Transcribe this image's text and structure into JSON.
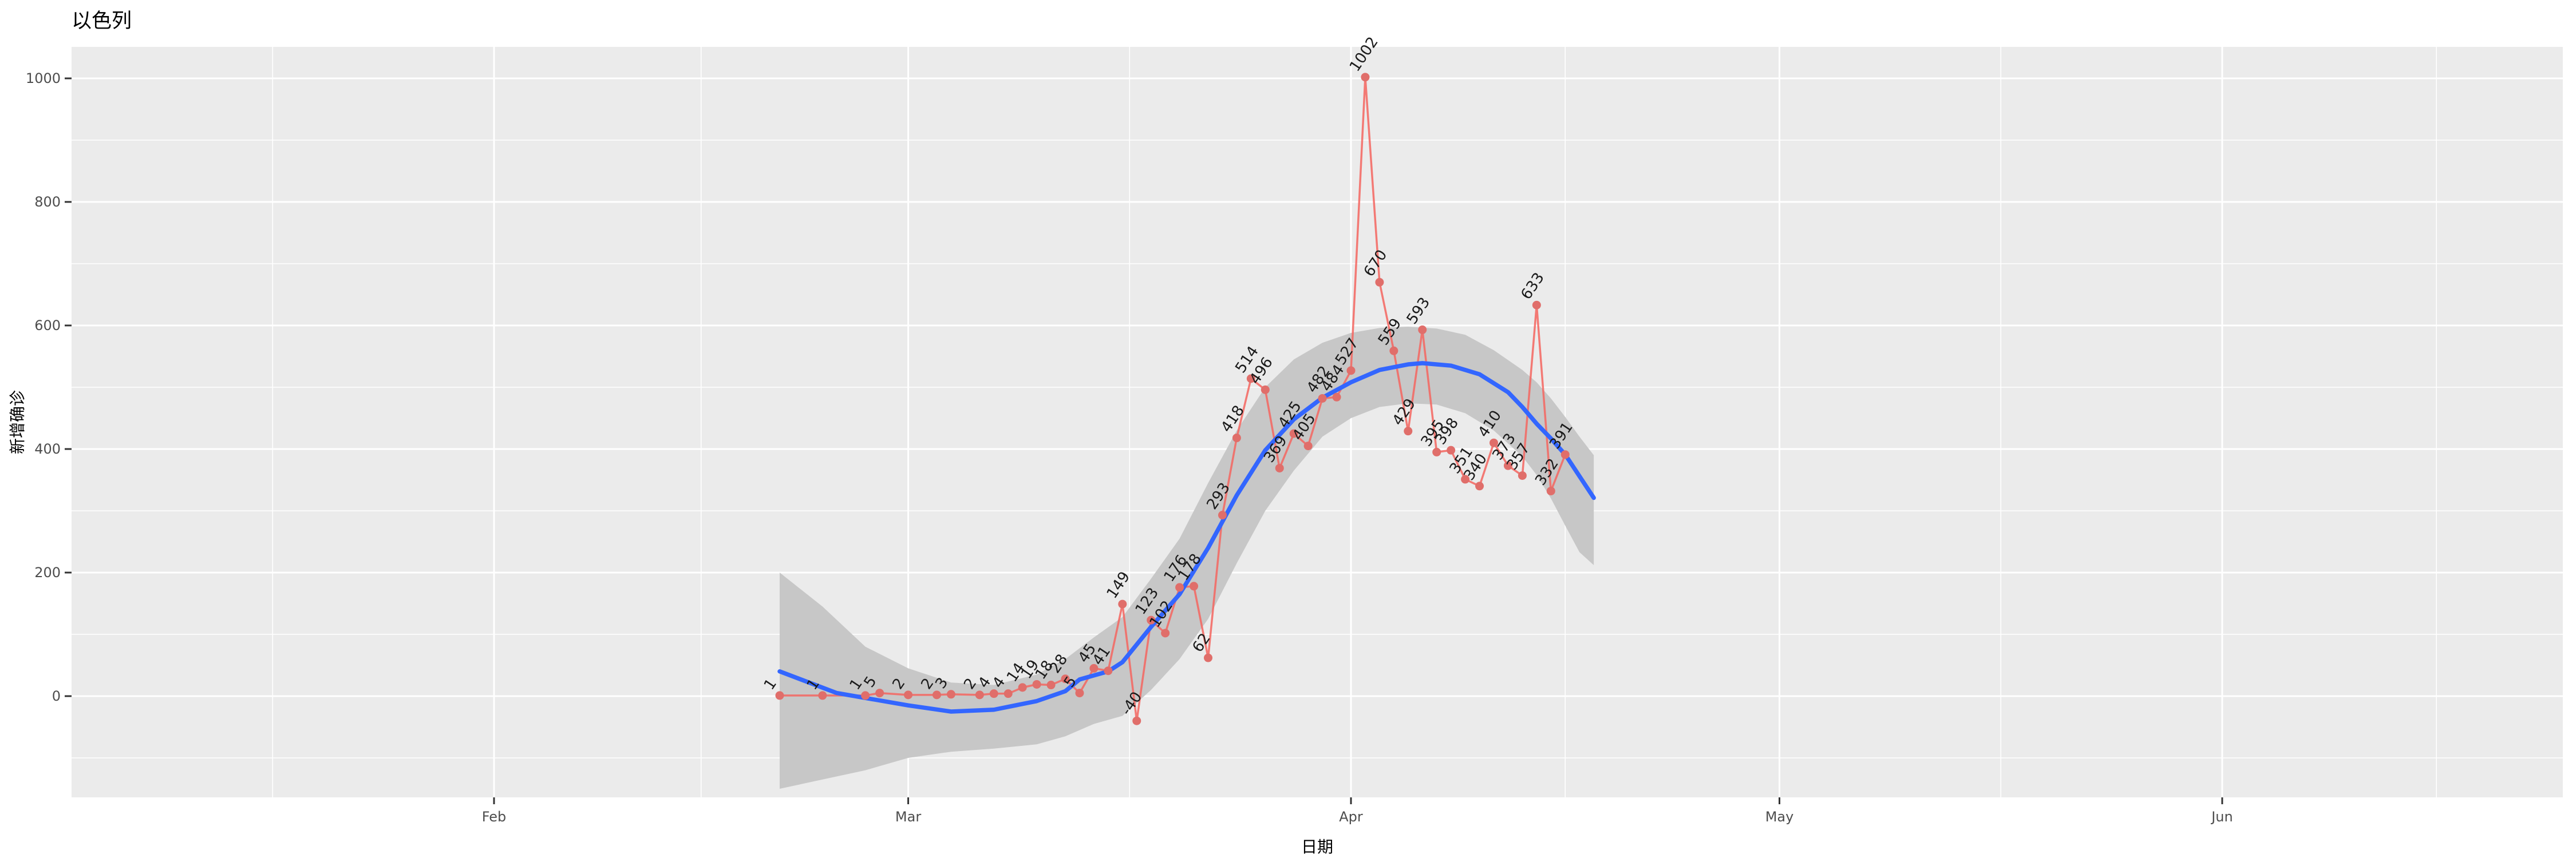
{
  "chart_data": {
    "type": "line",
    "title": "以色列",
    "xlabel": "日期",
    "ylabel": "新增确诊",
    "legend": "none",
    "grid": "on",
    "x_axis": {
      "ticks": [
        {
          "label": "Feb",
          "date": "2020-02-01"
        },
        {
          "label": "Mar",
          "date": "2020-03-01"
        },
        {
          "label": "Apr",
          "date": "2020-04-01"
        },
        {
          "label": "May",
          "date": "2020-05-01"
        },
        {
          "label": "Jun",
          "date": "2020-06-01"
        }
      ],
      "phantom_before": "2020-01-01",
      "phantom_after": "2020-07-01"
    },
    "y_axis": {
      "ticks": [
        0,
        200,
        400,
        600,
        800,
        1000
      ],
      "minor": [
        -100,
        100,
        300,
        500,
        700,
        900
      ],
      "ylim": [
        -165,
        1050
      ]
    },
    "colors": {
      "panel": "#EBEBEB",
      "grid": "#FFFFFF",
      "axis_text": "#4D4D4D",
      "tick_mark": "#333333",
      "data_line": "#F4655F",
      "data_point": "#E06E6A",
      "data_label": "#1A1A1A",
      "smooth_line": "#3366FF",
      "band_fill": "#C7C7C7"
    },
    "series": [
      {
        "name": "daily_new_cases",
        "type": "scatter+line+labels",
        "points": [
          {
            "date": "2020-02-21",
            "value": 1
          },
          {
            "date": "2020-02-24",
            "value": 1
          },
          {
            "date": "2020-02-27",
            "value": 1
          },
          {
            "date": "2020-02-28",
            "value": 5
          },
          {
            "date": "2020-03-01",
            "value": 2
          },
          {
            "date": "2020-03-03",
            "value": 2
          },
          {
            "date": "2020-03-04",
            "value": 3
          },
          {
            "date": "2020-03-06",
            "value": 2
          },
          {
            "date": "2020-03-07",
            "value": 4
          },
          {
            "date": "2020-03-08",
            "value": 4
          },
          {
            "date": "2020-03-09",
            "value": 14
          },
          {
            "date": "2020-03-10",
            "value": 19
          },
          {
            "date": "2020-03-11",
            "value": 18
          },
          {
            "date": "2020-03-12",
            "value": 28
          },
          {
            "date": "2020-03-13",
            "value": 5
          },
          {
            "date": "2020-03-14",
            "value": 45
          },
          {
            "date": "2020-03-15",
            "value": 41
          },
          {
            "date": "2020-03-16",
            "value": 149
          },
          {
            "date": "2020-03-17",
            "value": -40
          },
          {
            "date": "2020-03-18",
            "value": 123
          },
          {
            "date": "2020-03-19",
            "value": 102
          },
          {
            "date": "2020-03-20",
            "value": 176
          },
          {
            "date": "2020-03-21",
            "value": 178
          },
          {
            "date": "2020-03-22",
            "value": 62
          },
          {
            "date": "2020-03-23",
            "value": 293
          },
          {
            "date": "2020-03-24",
            "value": 418
          },
          {
            "date": "2020-03-25",
            "value": 514
          },
          {
            "date": "2020-03-26",
            "value": 496
          },
          {
            "date": "2020-03-27",
            "value": 369
          },
          {
            "date": "2020-03-28",
            "value": 425
          },
          {
            "date": "2020-03-29",
            "value": 405
          },
          {
            "date": "2020-03-30",
            "value": 482
          },
          {
            "date": "2020-03-31",
            "value": 484
          },
          {
            "date": "2020-04-01",
            "value": 527
          },
          {
            "date": "2020-04-02",
            "value": 1002
          },
          {
            "date": "2020-04-03",
            "value": 670
          },
          {
            "date": "2020-04-04",
            "value": 559
          },
          {
            "date": "2020-04-05",
            "value": 429
          },
          {
            "date": "2020-04-06",
            "value": 593
          },
          {
            "date": "2020-04-07",
            "value": 395
          },
          {
            "date": "2020-04-08",
            "value": 398
          },
          {
            "date": "2020-04-09",
            "value": 351
          },
          {
            "date": "2020-04-10",
            "value": 340
          },
          {
            "date": "2020-04-11",
            "value": 410
          },
          {
            "date": "2020-04-12",
            "value": 373
          },
          {
            "date": "2020-04-13",
            "value": 357
          },
          {
            "date": "2020-04-14",
            "value": 633
          },
          {
            "date": "2020-04-15",
            "value": 332
          },
          {
            "date": "2020-04-16",
            "value": 391
          }
        ]
      },
      {
        "name": "loess_smooth",
        "type": "smooth-line",
        "points": [
          [
            "2020-02-21",
            40
          ],
          [
            "2020-02-25",
            5
          ],
          [
            "2020-03-01",
            -15
          ],
          [
            "2020-03-04",
            -25
          ],
          [
            "2020-03-07",
            -22
          ],
          [
            "2020-03-10",
            -8
          ],
          [
            "2020-03-12",
            8
          ],
          [
            "2020-03-13",
            27
          ],
          [
            "2020-03-15",
            40
          ],
          [
            "2020-03-16",
            55
          ],
          [
            "2020-03-18",
            112
          ],
          [
            "2020-03-20",
            165
          ],
          [
            "2020-03-22",
            240
          ],
          [
            "2020-03-24",
            325
          ],
          [
            "2020-03-26",
            398
          ],
          [
            "2020-03-28",
            448
          ],
          [
            "2020-03-30",
            483
          ],
          [
            "2020-04-01",
            508
          ],
          [
            "2020-04-03",
            528
          ],
          [
            "2020-04-05",
            537
          ],
          [
            "2020-04-06",
            539
          ],
          [
            "2020-04-08",
            535
          ],
          [
            "2020-04-10",
            521
          ],
          [
            "2020-04-12",
            492
          ],
          [
            "2020-04-13",
            468
          ],
          [
            "2020-04-14",
            441
          ],
          [
            "2020-04-15",
            417
          ],
          [
            "2020-04-16",
            391
          ],
          [
            "2020-04-17",
            356
          ],
          [
            "2020-04-18",
            321
          ]
        ]
      },
      {
        "name": "confidence_band",
        "type": "band",
        "points": [
          [
            "2020-02-21",
            -150,
            200
          ],
          [
            "2020-02-24",
            -135,
            145
          ],
          [
            "2020-02-27",
            -120,
            80
          ],
          [
            "2020-03-01",
            -100,
            45
          ],
          [
            "2020-03-04",
            -90,
            22
          ],
          [
            "2020-03-07",
            -85,
            18
          ],
          [
            "2020-03-10",
            -78,
            35
          ],
          [
            "2020-03-12",
            -65,
            60
          ],
          [
            "2020-03-14",
            -45,
            95
          ],
          [
            "2020-03-16",
            -32,
            128
          ],
          [
            "2020-03-18",
            10,
            190
          ],
          [
            "2020-03-20",
            60,
            255
          ],
          [
            "2020-03-22",
            125,
            345
          ],
          [
            "2020-03-24",
            215,
            430
          ],
          [
            "2020-03-26",
            300,
            500
          ],
          [
            "2020-03-28",
            365,
            545
          ],
          [
            "2020-03-30",
            420,
            572
          ],
          [
            "2020-04-01",
            450,
            588
          ],
          [
            "2020-04-03",
            468,
            596
          ],
          [
            "2020-04-05",
            474,
            598
          ],
          [
            "2020-04-07",
            472,
            595
          ],
          [
            "2020-04-09",
            458,
            585
          ],
          [
            "2020-04-11",
            430,
            560
          ],
          [
            "2020-04-13",
            388,
            528
          ],
          [
            "2020-04-14",
            358,
            508
          ],
          [
            "2020-04-15",
            320,
            482
          ],
          [
            "2020-04-16",
            276,
            452
          ],
          [
            "2020-04-17",
            233,
            420
          ],
          [
            "2020-04-18",
            212,
            390
          ]
        ]
      }
    ]
  }
}
